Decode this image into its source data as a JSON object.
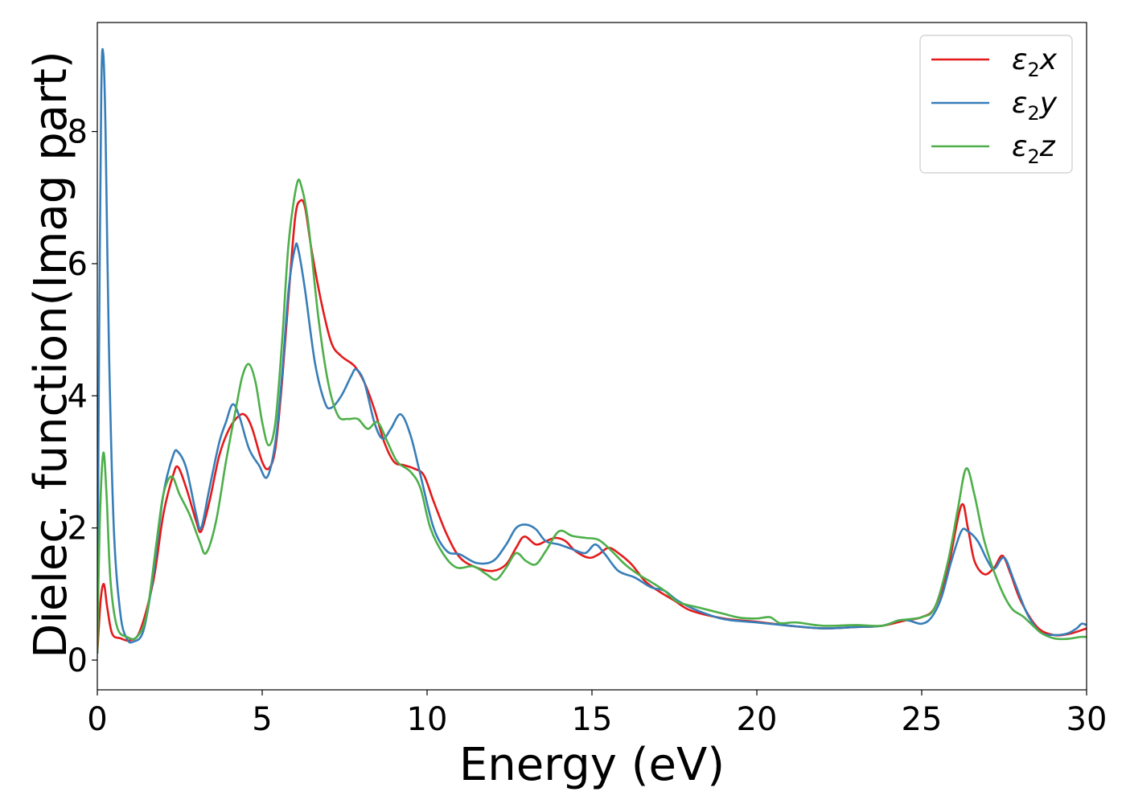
{
  "chart_data": {
    "type": "line",
    "xlabel": "Energy (eV)",
    "ylabel": "Dielec. function(Imag part)",
    "xlim": [
      0,
      30
    ],
    "ylim": [
      -0.45,
      9.65
    ],
    "xticks": [
      0,
      5,
      10,
      15,
      20,
      25,
      30
    ],
    "yticks": [
      0,
      2,
      4,
      6,
      8
    ],
    "grid": false,
    "legend_position": "top-right",
    "series": [
      {
        "name": "ε2x",
        "legend": {
          "base": "ε",
          "sub": "2",
          "tail": "x"
        },
        "color": "#e41a1c",
        "points": [
          [
            0,
            0.1
          ],
          [
            0.1,
            0.9
          ],
          [
            0.2,
            1.15
          ],
          [
            0.3,
            0.8
          ],
          [
            0.45,
            0.4
          ],
          [
            0.7,
            0.33
          ],
          [
            1.0,
            0.3
          ],
          [
            1.3,
            0.45
          ],
          [
            1.7,
            1.2
          ],
          [
            2.0,
            2.2
          ],
          [
            2.3,
            2.8
          ],
          [
            2.45,
            2.92
          ],
          [
            2.7,
            2.6
          ],
          [
            3.0,
            2.1
          ],
          [
            3.15,
            1.95
          ],
          [
            3.4,
            2.4
          ],
          [
            3.7,
            3.1
          ],
          [
            4.0,
            3.5
          ],
          [
            4.3,
            3.7
          ],
          [
            4.5,
            3.7
          ],
          [
            4.7,
            3.5
          ],
          [
            5.0,
            3.0
          ],
          [
            5.2,
            2.9
          ],
          [
            5.4,
            3.2
          ],
          [
            5.6,
            4.2
          ],
          [
            5.8,
            5.5
          ],
          [
            6.0,
            6.7
          ],
          [
            6.15,
            6.95
          ],
          [
            6.3,
            6.85
          ],
          [
            6.5,
            6.2
          ],
          [
            6.8,
            5.4
          ],
          [
            7.1,
            4.8
          ],
          [
            7.4,
            4.6
          ],
          [
            7.8,
            4.45
          ],
          [
            8.1,
            4.2
          ],
          [
            8.4,
            3.8
          ],
          [
            8.7,
            3.3
          ],
          [
            9.0,
            3.0
          ],
          [
            9.3,
            2.95
          ],
          [
            9.6,
            2.9
          ],
          [
            9.9,
            2.8
          ],
          [
            10.2,
            2.4
          ],
          [
            10.6,
            1.9
          ],
          [
            11.0,
            1.55
          ],
          [
            11.5,
            1.4
          ],
          [
            12.0,
            1.35
          ],
          [
            12.4,
            1.45
          ],
          [
            12.7,
            1.7
          ],
          [
            12.95,
            1.87
          ],
          [
            13.3,
            1.75
          ],
          [
            13.6,
            1.8
          ],
          [
            13.9,
            1.85
          ],
          [
            14.2,
            1.8
          ],
          [
            14.5,
            1.65
          ],
          [
            14.9,
            1.55
          ],
          [
            15.2,
            1.6
          ],
          [
            15.5,
            1.7
          ],
          [
            15.8,
            1.62
          ],
          [
            16.2,
            1.45
          ],
          [
            16.6,
            1.2
          ],
          [
            17.0,
            1.05
          ],
          [
            17.5,
            0.9
          ],
          [
            18.0,
            0.75
          ],
          [
            19.0,
            0.63
          ],
          [
            20.0,
            0.58
          ],
          [
            21.0,
            0.52
          ],
          [
            22.0,
            0.48
          ],
          [
            23.0,
            0.5
          ],
          [
            23.8,
            0.52
          ],
          [
            24.5,
            0.6
          ],
          [
            25.0,
            0.65
          ],
          [
            25.4,
            0.8
          ],
          [
            25.8,
            1.4
          ],
          [
            26.2,
            2.34
          ],
          [
            26.4,
            2.0
          ],
          [
            26.6,
            1.5
          ],
          [
            26.9,
            1.3
          ],
          [
            27.2,
            1.4
          ],
          [
            27.45,
            1.58
          ],
          [
            27.7,
            1.3
          ],
          [
            28.0,
            0.9
          ],
          [
            28.5,
            0.5
          ],
          [
            29.0,
            0.38
          ],
          [
            29.5,
            0.4
          ],
          [
            30.0,
            0.48
          ]
        ]
      },
      {
        "name": "ε2y",
        "legend": {
          "base": "ε",
          "sub": "2",
          "tail": "y"
        },
        "color": "#377eb8",
        "points": [
          [
            0,
            0.1
          ],
          [
            0.05,
            4.5
          ],
          [
            0.12,
            8.6
          ],
          [
            0.18,
            9.18
          ],
          [
            0.25,
            8.0
          ],
          [
            0.35,
            4.8
          ],
          [
            0.5,
            2.0
          ],
          [
            0.7,
            0.7
          ],
          [
            0.9,
            0.32
          ],
          [
            1.1,
            0.28
          ],
          [
            1.4,
            0.45
          ],
          [
            1.7,
            1.3
          ],
          [
            2.0,
            2.5
          ],
          [
            2.3,
            3.1
          ],
          [
            2.45,
            3.15
          ],
          [
            2.7,
            2.9
          ],
          [
            3.0,
            2.2
          ],
          [
            3.15,
            2.0
          ],
          [
            3.4,
            2.6
          ],
          [
            3.7,
            3.3
          ],
          [
            3.9,
            3.6
          ],
          [
            4.1,
            3.87
          ],
          [
            4.3,
            3.7
          ],
          [
            4.6,
            3.2
          ],
          [
            4.9,
            2.95
          ],
          [
            5.15,
            2.77
          ],
          [
            5.4,
            3.3
          ],
          [
            5.6,
            4.3
          ],
          [
            5.8,
            5.6
          ],
          [
            6.0,
            6.25
          ],
          [
            6.1,
            6.2
          ],
          [
            6.3,
            5.6
          ],
          [
            6.6,
            4.5
          ],
          [
            6.9,
            3.9
          ],
          [
            7.1,
            3.82
          ],
          [
            7.4,
            4.0
          ],
          [
            7.7,
            4.3
          ],
          [
            7.85,
            4.4
          ],
          [
            8.1,
            4.2
          ],
          [
            8.4,
            3.6
          ],
          [
            8.65,
            3.35
          ],
          [
            8.9,
            3.5
          ],
          [
            9.2,
            3.72
          ],
          [
            9.5,
            3.4
          ],
          [
            9.8,
            2.8
          ],
          [
            10.2,
            2.0
          ],
          [
            10.6,
            1.65
          ],
          [
            11.0,
            1.6
          ],
          [
            11.5,
            1.47
          ],
          [
            12.0,
            1.5
          ],
          [
            12.4,
            1.75
          ],
          [
            12.7,
            2.0
          ],
          [
            13.0,
            2.05
          ],
          [
            13.3,
            1.98
          ],
          [
            13.6,
            1.8
          ],
          [
            14.0,
            1.75
          ],
          [
            14.4,
            1.68
          ],
          [
            14.8,
            1.62
          ],
          [
            15.1,
            1.75
          ],
          [
            15.4,
            1.6
          ],
          [
            15.8,
            1.35
          ],
          [
            16.3,
            1.25
          ],
          [
            16.8,
            1.1
          ],
          [
            17.2,
            1.05
          ],
          [
            17.6,
            0.9
          ],
          [
            18.2,
            0.75
          ],
          [
            19.0,
            0.62
          ],
          [
            20.0,
            0.57
          ],
          [
            21.0,
            0.52
          ],
          [
            22.0,
            0.48
          ],
          [
            23.0,
            0.5
          ],
          [
            23.8,
            0.52
          ],
          [
            24.3,
            0.6
          ],
          [
            24.6,
            0.6
          ],
          [
            25.0,
            0.55
          ],
          [
            25.3,
            0.65
          ],
          [
            25.6,
            0.95
          ],
          [
            25.9,
            1.5
          ],
          [
            26.2,
            1.95
          ],
          [
            26.4,
            1.95
          ],
          [
            26.7,
            1.8
          ],
          [
            27.0,
            1.5
          ],
          [
            27.2,
            1.38
          ],
          [
            27.5,
            1.55
          ],
          [
            27.8,
            1.2
          ],
          [
            28.2,
            0.7
          ],
          [
            28.6,
            0.42
          ],
          [
            29.0,
            0.38
          ],
          [
            29.4,
            0.4
          ],
          [
            29.7,
            0.48
          ],
          [
            29.85,
            0.55
          ],
          [
            30.0,
            0.53
          ]
        ]
      },
      {
        "name": "ε2z",
        "legend": {
          "base": "ε",
          "sub": "2",
          "tail": "z"
        },
        "color": "#4daf4a",
        "points": [
          [
            0,
            0.1
          ],
          [
            0.07,
            2.0
          ],
          [
            0.18,
            3.13
          ],
          [
            0.28,
            2.5
          ],
          [
            0.4,
            1.2
          ],
          [
            0.6,
            0.5
          ],
          [
            0.9,
            0.35
          ],
          [
            1.2,
            0.35
          ],
          [
            1.5,
            0.7
          ],
          [
            1.8,
            1.8
          ],
          [
            2.0,
            2.5
          ],
          [
            2.25,
            2.78
          ],
          [
            2.5,
            2.5
          ],
          [
            2.8,
            2.2
          ],
          [
            3.1,
            1.8
          ],
          [
            3.3,
            1.62
          ],
          [
            3.6,
            2.1
          ],
          [
            3.9,
            3.0
          ],
          [
            4.2,
            3.8
          ],
          [
            4.4,
            4.3
          ],
          [
            4.6,
            4.48
          ],
          [
            4.8,
            4.2
          ],
          [
            5.0,
            3.6
          ],
          [
            5.2,
            3.25
          ],
          [
            5.4,
            3.6
          ],
          [
            5.6,
            4.8
          ],
          [
            5.8,
            6.3
          ],
          [
            6.05,
            7.2
          ],
          [
            6.2,
            7.15
          ],
          [
            6.4,
            6.6
          ],
          [
            6.7,
            5.2
          ],
          [
            7.0,
            4.2
          ],
          [
            7.3,
            3.7
          ],
          [
            7.6,
            3.65
          ],
          [
            7.9,
            3.65
          ],
          [
            8.2,
            3.5
          ],
          [
            8.5,
            3.6
          ],
          [
            8.8,
            3.3
          ],
          [
            9.1,
            3.0
          ],
          [
            9.5,
            2.85
          ],
          [
            9.8,
            2.6
          ],
          [
            10.1,
            2.0
          ],
          [
            10.5,
            1.6
          ],
          [
            10.9,
            1.4
          ],
          [
            11.4,
            1.42
          ],
          [
            11.8,
            1.3
          ],
          [
            12.1,
            1.22
          ],
          [
            12.4,
            1.4
          ],
          [
            12.7,
            1.62
          ],
          [
            13.0,
            1.5
          ],
          [
            13.3,
            1.45
          ],
          [
            13.6,
            1.65
          ],
          [
            14.0,
            1.95
          ],
          [
            14.4,
            1.88
          ],
          [
            14.8,
            1.85
          ],
          [
            15.2,
            1.82
          ],
          [
            15.6,
            1.65
          ],
          [
            16.0,
            1.45
          ],
          [
            16.4,
            1.3
          ],
          [
            16.8,
            1.18
          ],
          [
            17.2,
            1.05
          ],
          [
            17.6,
            0.88
          ],
          [
            18.2,
            0.8
          ],
          [
            19.0,
            0.7
          ],
          [
            19.5,
            0.64
          ],
          [
            20.0,
            0.63
          ],
          [
            20.4,
            0.65
          ],
          [
            20.7,
            0.56
          ],
          [
            21.2,
            0.57
          ],
          [
            22.0,
            0.52
          ],
          [
            23.0,
            0.53
          ],
          [
            23.8,
            0.52
          ],
          [
            24.3,
            0.6
          ],
          [
            25.0,
            0.65
          ],
          [
            25.4,
            0.8
          ],
          [
            25.8,
            1.5
          ],
          [
            26.1,
            2.3
          ],
          [
            26.35,
            2.9
          ],
          [
            26.6,
            2.5
          ],
          [
            26.9,
            1.8
          ],
          [
            27.3,
            1.2
          ],
          [
            27.7,
            0.8
          ],
          [
            28.1,
            0.65
          ],
          [
            28.6,
            0.42
          ],
          [
            29.0,
            0.33
          ],
          [
            29.4,
            0.32
          ],
          [
            29.8,
            0.35
          ],
          [
            30.0,
            0.35
          ]
        ]
      }
    ]
  }
}
